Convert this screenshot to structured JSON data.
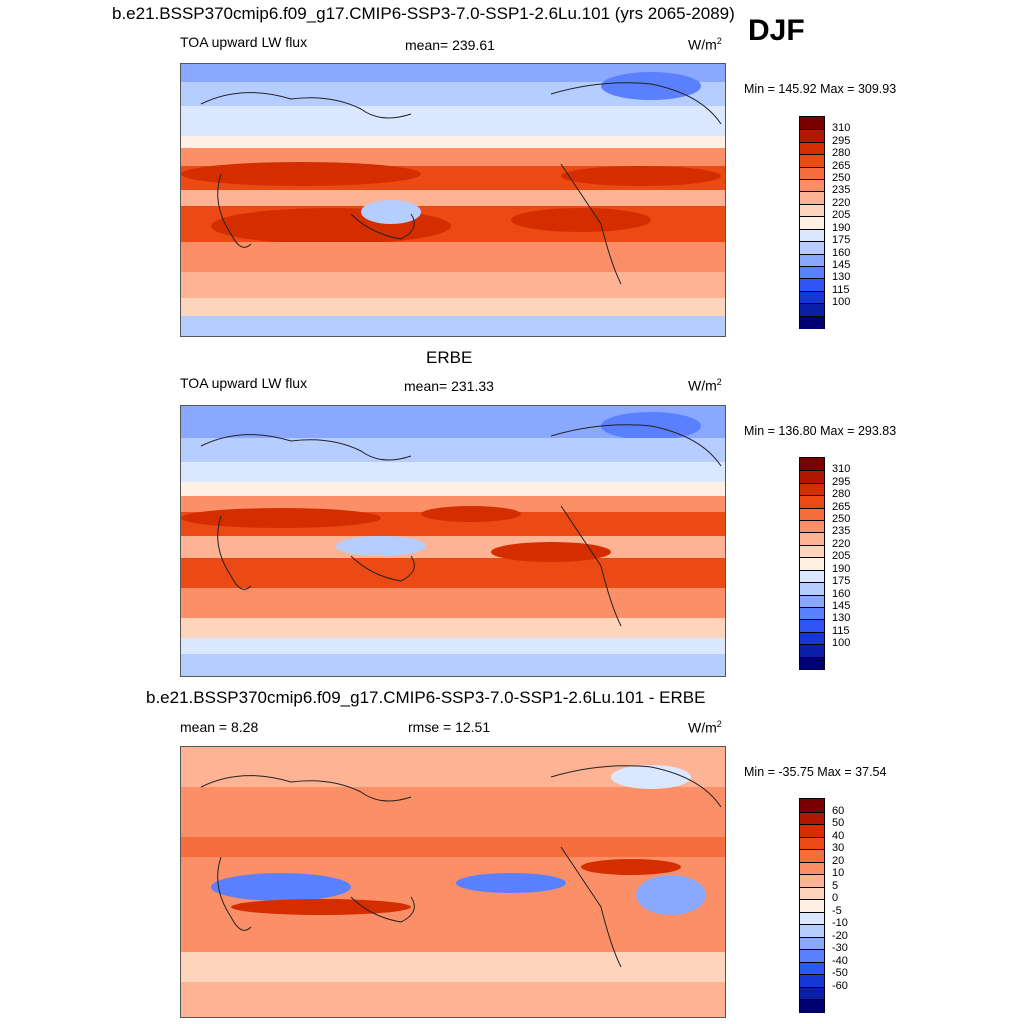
{
  "header": {
    "title": "b.e21.BSSP370cmip6.f09_g17.CMIP6-SSP3-7.0-SSP1-2.6Lu.101 (yrs 2065-2089)",
    "season": "DJF"
  },
  "panels": [
    {
      "id": "model",
      "title": "",
      "left_label": "TOA upward LW flux",
      "center_label": "mean= 239.61",
      "units_base": "W/m",
      "units_exp": "2",
      "minmax": "Min = 145.92 Max = 309.93",
      "colorbar": {
        "labels": [
          "310",
          "295",
          "280",
          "265",
          "250",
          "235",
          "220",
          "205",
          "190",
          "175",
          "160",
          "145",
          "130",
          "115",
          "100"
        ],
        "colors": [
          "#7a0000",
          "#b01800",
          "#d42e00",
          "#ec4a14",
          "#f66e3c",
          "#fb9068",
          "#fdb394",
          "#fdd5bc",
          "#fff0e4",
          "#dbe7ff",
          "#b6cdff",
          "#8aa8ff",
          "#5a80ff",
          "#2f56f4",
          "#1636d6",
          "#0a1ea8",
          "#000070"
        ]
      }
    },
    {
      "id": "obs",
      "title": "ERBE",
      "left_label": "TOA upward LW flux",
      "center_label": "mean= 231.33",
      "units_base": "W/m",
      "units_exp": "2",
      "minmax": "Min = 136.80 Max = 293.83",
      "colorbar": {
        "labels": [
          "310",
          "295",
          "280",
          "265",
          "250",
          "235",
          "220",
          "205",
          "190",
          "175",
          "160",
          "145",
          "130",
          "115",
          "100"
        ],
        "colors": [
          "#7a0000",
          "#b01800",
          "#d42e00",
          "#ec4a14",
          "#f66e3c",
          "#fb9068",
          "#fdb394",
          "#fdd5bc",
          "#fff0e4",
          "#dbe7ff",
          "#b6cdff",
          "#8aa8ff",
          "#5a80ff",
          "#2f56f4",
          "#1636d6",
          "#0a1ea8",
          "#000070"
        ]
      }
    },
    {
      "id": "diff",
      "title": "b.e21.BSSP370cmip6.f09_g17.CMIP6-SSP3-7.0-SSP1-2.6Lu.101 - ERBE",
      "left_label": "mean =   8.28",
      "center_label": "rmse =  12.51",
      "units_base": "W/m",
      "units_exp": "2",
      "minmax": "Min = -35.75 Max =  37.54",
      "colorbar": {
        "labels": [
          "60",
          "50",
          "40",
          "30",
          "20",
          "10",
          "5",
          "0",
          "-5",
          "-10",
          "-20",
          "-30",
          "-40",
          "-50",
          "-60"
        ],
        "colors": [
          "#7a0000",
          "#b01800",
          "#d42e00",
          "#ec4a14",
          "#f66e3c",
          "#fb9068",
          "#fdb394",
          "#fdd5bc",
          "#fff0e4",
          "#dbe7ff",
          "#b6cdff",
          "#8aa8ff",
          "#5a80ff",
          "#2f56f4",
          "#1636d6",
          "#0a1ea8",
          "#000070"
        ]
      }
    }
  ]
}
